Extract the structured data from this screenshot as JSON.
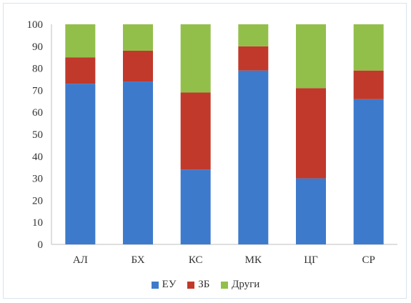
{
  "chart_data": {
    "type": "bar",
    "stacked": true,
    "categories": [
      "АЛ",
      "БХ",
      "КС",
      "МК",
      "ЦГ",
      "СР"
    ],
    "series": [
      {
        "name": "ЕУ",
        "color": "#3d7acc",
        "values": [
          73,
          74,
          34,
          79,
          30,
          66
        ]
      },
      {
        "name": "ЗБ",
        "color": "#c0392b",
        "values": [
          12,
          14,
          35,
          11,
          41,
          13
        ]
      },
      {
        "name": "Други",
        "color": "#92bf4a",
        "values": [
          15,
          12,
          31,
          10,
          29,
          21
        ]
      }
    ],
    "ylim": [
      0,
      100
    ],
    "yticks": [
      "0",
      "10",
      "20",
      "30",
      "40",
      "50",
      "60",
      "70",
      "80",
      "90",
      "100"
    ],
    "grid": false,
    "legend_position": "bottom"
  }
}
